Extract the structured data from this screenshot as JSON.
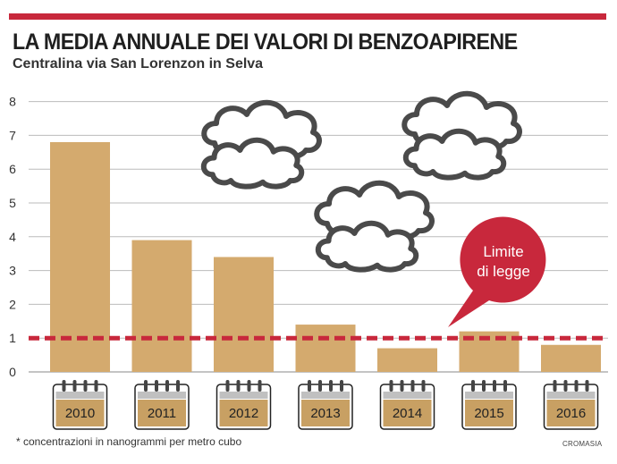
{
  "header": {
    "title": "LA MEDIA ANNUALE DEI VALORI DI BENZOAPIRENE",
    "subtitle": "Centralina via San Lorenzon in Selva"
  },
  "footer": {
    "note": "* concentrazioni in nanogrammi per metro cubo",
    "credit": "CROMASIA"
  },
  "colors": {
    "bar": "#d4aa6e",
    "accent": "#c8283c",
    "gridline": "#bbbbbb",
    "cloud_stroke": "#4a4a4a"
  },
  "icons": [
    "calendar-icon",
    "cloud-icon"
  ],
  "chart_data": {
    "type": "bar",
    "categories": [
      "2010",
      "2011",
      "2012",
      "2013",
      "2014",
      "2015",
      "2016"
    ],
    "values": [
      6.8,
      3.9,
      3.4,
      1.4,
      0.7,
      1.2,
      0.8
    ],
    "ylim": [
      0,
      8
    ],
    "yticks": [
      0,
      1,
      2,
      3,
      4,
      5,
      6,
      7,
      8
    ],
    "grid": true,
    "reference_line": {
      "value": 1,
      "label": "Limite di legge",
      "label_lines": [
        "Limite",
        "di legge"
      ]
    }
  }
}
